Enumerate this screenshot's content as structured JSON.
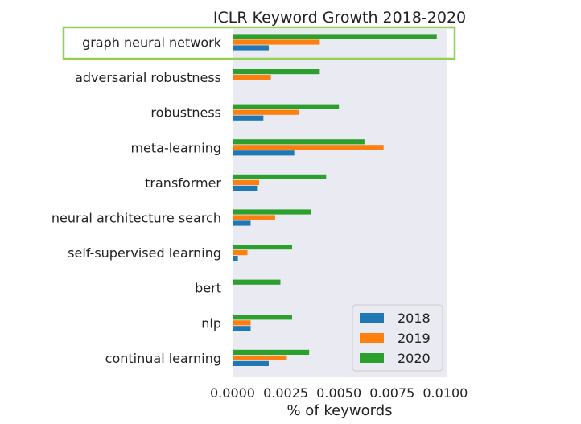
{
  "chart_data": {
    "type": "bar",
    "orientation": "horizontal",
    "title": "ICLR Keyword Growth 2018-2020",
    "xlabel": "% of keywords",
    "ylabel": "",
    "xlim": [
      0,
      0.0101
    ],
    "xticks": [
      "0.0000",
      "0.0025",
      "0.0050",
      "0.0075",
      "0.0100"
    ],
    "xtick_values": [
      0,
      0.0025,
      0.005,
      0.0075,
      0.01
    ],
    "categories": [
      "graph neural network",
      "adversarial robustness",
      "robustness",
      "meta-learning",
      "transformer",
      "neural architecture search",
      "self-supervised learning",
      "bert",
      "nlp",
      "continual learning"
    ],
    "series": [
      {
        "name": "2018",
        "color": "#1f77b4",
        "values": [
          0.0017,
          0.0,
          0.00145,
          0.0029,
          0.00115,
          0.00085,
          0.00025,
          0.0,
          0.00085,
          0.0017
        ]
      },
      {
        "name": "2019",
        "color": "#ff7f0e",
        "values": [
          0.0041,
          0.0018,
          0.0031,
          0.0071,
          0.00125,
          0.002,
          0.0007,
          0.0,
          0.00085,
          0.00255
        ]
      },
      {
        "name": "2020",
        "color": "#2ca02c",
        "values": [
          0.0096,
          0.0041,
          0.005,
          0.0062,
          0.0044,
          0.0037,
          0.0028,
          0.00225,
          0.0028,
          0.0036
        ]
      }
    ],
    "legend": {
      "position": "lower-right"
    },
    "grid": false,
    "highlight": {
      "category": "graph neural network",
      "color": "#92d050"
    }
  }
}
